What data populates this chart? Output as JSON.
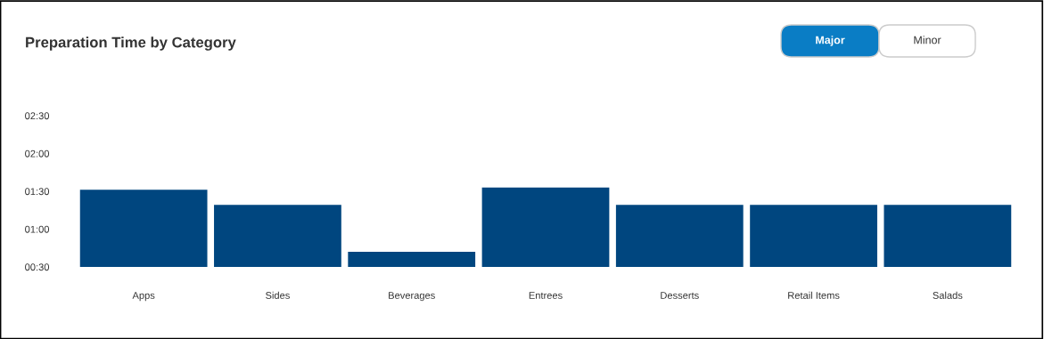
{
  "chart_data": {
    "type": "bar",
    "title": "Preparation Time by Category",
    "categories": [
      "Apps",
      "Sides",
      "Beverages",
      "Entrees",
      "Desserts",
      "Retail Items",
      "Salads"
    ],
    "values": [
      1.52,
      1.32,
      0.7,
      1.55,
      1.32,
      1.32,
      1.32
    ],
    "color": "#00467f",
    "ylim": [
      0.5,
      2.5
    ],
    "yticks": [
      {
        "value": 0.5,
        "label": "00:30"
      },
      {
        "value": 1.0,
        "label": "01:00"
      },
      {
        "value": 1.5,
        "label": "01:30"
      },
      {
        "value": 2.0,
        "label": "02:00"
      },
      {
        "value": 2.5,
        "label": "02:30"
      }
    ],
    "grid": false,
    "annotations": [
      "Major",
      "Minor"
    ]
  }
}
